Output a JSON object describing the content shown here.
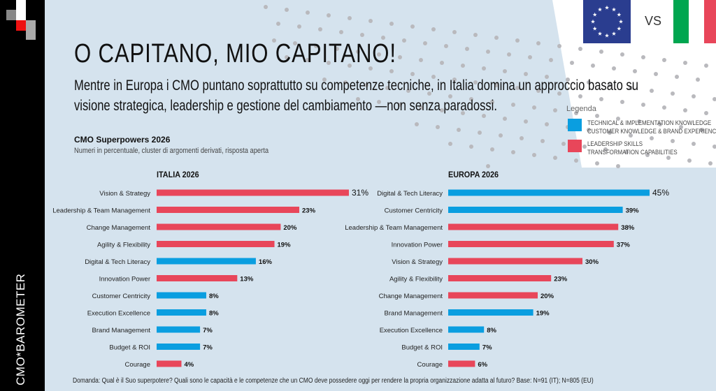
{
  "brand": "CMO*BAROMETER",
  "title": "O CAPITANO, MIO CAPITANO!",
  "subtitle": "Mentre in Europa i CMO puntano soprattutto su competenze tecniche, in Italia domina un approccio basato su visione strategica, leadership e gestione del cambiamento —non senza paradossi.",
  "flags": {
    "vs": "VS"
  },
  "legend": {
    "title": "Legenda",
    "items": [
      {
        "label1": "TECHNICAL & IMPLEMENTATION KNOWLEDGE",
        "label2": "CUSTOMER KNOWLEDGE & BRAND EXPERIENCE",
        "color": "#0a9ee0"
      },
      {
        "label1": "LEADERSHIP SKILLS",
        "label2": "TRANSFORMATION CAPABILITIES",
        "color": "#e8465a"
      }
    ]
  },
  "footer": "Domanda: Qual è il Suo superpotere? Quali sono le capacità e le competenze che un CMO deve possedere oggi per rendere la propria organizzazione adatta al futuro?  Base: N=91 (IT); N=805 (EU)",
  "chart_data": [
    {
      "type": "bar",
      "orientation": "horizontal",
      "title": "CMO Superpowers 2026",
      "subtitle": "Numeri in percentuale, cluster di argomenti derivati, risposta aperta",
      "panel": "ITALIA 2026",
      "unit": "%",
      "categories": [
        "Vision & Strategy",
        "Leadership & Team Management",
        "Change Management",
        "Agility & Flexibility",
        "Digital & Tech Literacy",
        "Innovation Power",
        "Customer Centricity",
        "Execution Excellence",
        "Brand Management",
        "Budget & ROI",
        "Courage"
      ],
      "values": [
        31,
        23,
        20,
        19,
        16,
        13,
        8,
        8,
        7,
        7,
        4
      ],
      "groups": [
        "red",
        "red",
        "red",
        "red",
        "blue",
        "red",
        "blue",
        "blue",
        "blue",
        "blue",
        "red"
      ]
    },
    {
      "type": "bar",
      "orientation": "horizontal",
      "panel": "EUROPA 2026",
      "unit": "%",
      "categories": [
        "Digital & Tech Literacy",
        "Customer Centricity",
        "Leadership & Team Management",
        "Innovation Power",
        "Vision & Strategy",
        "Agility & Flexibility",
        "Change Management",
        "Brand Management",
        "Execution Excellence",
        "Budget & ROI",
        "Courage"
      ],
      "values": [
        45,
        39,
        38,
        37,
        30,
        23,
        20,
        19,
        8,
        7,
        6
      ],
      "groups": [
        "blue",
        "blue",
        "red",
        "red",
        "red",
        "red",
        "red",
        "blue",
        "blue",
        "blue",
        "red"
      ]
    }
  ],
  "colors": {
    "blue": "#0a9ee0",
    "red": "#e8465a",
    "background": "#d5e3ee"
  }
}
